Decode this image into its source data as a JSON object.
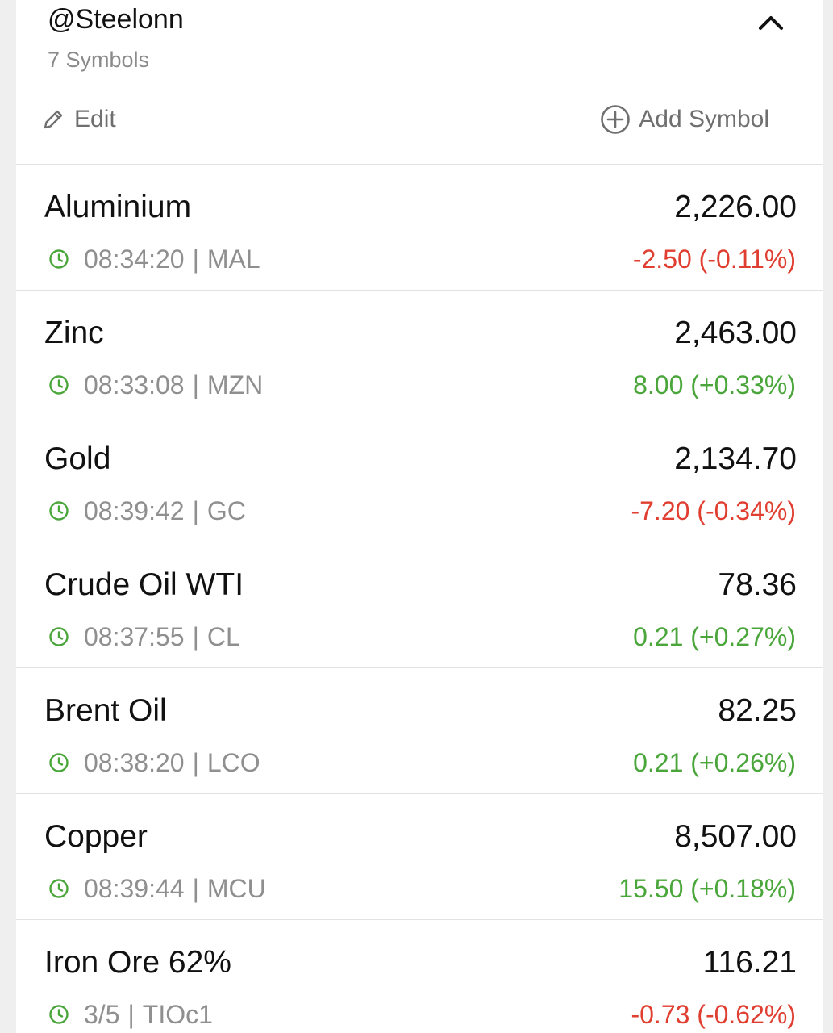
{
  "header": {
    "title": "@Steelonn",
    "subtitle": "7 Symbols",
    "edit_label": "Edit",
    "add_label": "Add Symbol"
  },
  "colors": {
    "negative": "#e03e30",
    "positive": "#4aa63a",
    "clock": "#4aa63a"
  },
  "icons": {
    "collapse": "chevron-up-icon",
    "edit": "pencil-icon",
    "add": "plus-circle-icon",
    "time": "clock-icon"
  },
  "rows": [
    {
      "name": "Aluminium",
      "price": "2,226.00",
      "time": "08:34:20",
      "symbol": "MAL",
      "change": "-2.50 (-0.11%)",
      "direction": "neg"
    },
    {
      "name": "Zinc",
      "price": "2,463.00",
      "time": "08:33:08",
      "symbol": "MZN",
      "change": "8.00 (+0.33%)",
      "direction": "pos"
    },
    {
      "name": "Gold",
      "price": "2,134.70",
      "time": "08:39:42",
      "symbol": "GC",
      "change": "-7.20 (-0.34%)",
      "direction": "neg"
    },
    {
      "name": "Crude Oil WTI",
      "price": "78.36",
      "time": "08:37:55",
      "symbol": "CL",
      "change": "0.21 (+0.27%)",
      "direction": "pos"
    },
    {
      "name": "Brent Oil",
      "price": "82.25",
      "time": "08:38:20",
      "symbol": "LCO",
      "change": "0.21 (+0.26%)",
      "direction": "pos"
    },
    {
      "name": "Copper",
      "price": "8,507.00",
      "time": "08:39:44",
      "symbol": "MCU",
      "change": "15.50 (+0.18%)",
      "direction": "pos"
    },
    {
      "name": "Iron Ore 62%",
      "price": "116.21",
      "time": "3/5",
      "symbol": "TIOc1",
      "change": "-0.73 (-0.62%)",
      "direction": "neg"
    }
  ]
}
